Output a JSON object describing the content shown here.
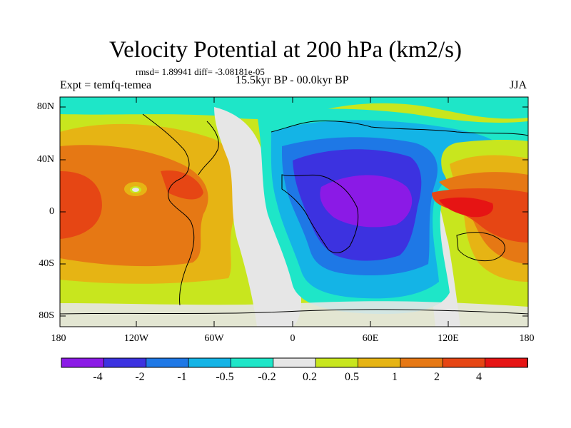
{
  "title": "Velocity Potential at 200 hPa (km2/s)",
  "stats": "rmsd= 1.89941  diff= -3.08181e-05",
  "left_label": "Expt = temfq-temea",
  "center_label": "15.5kyr BP - 00.0kyr BP",
  "right_label": "JJA",
  "lat_ticks": [
    "80N",
    "40N",
    "0",
    "40S",
    "80S"
  ],
  "lon_ticks": [
    "180",
    "120W",
    "60W",
    "0",
    "60E",
    "120E",
    "180"
  ],
  "colorbar": {
    "labels": [
      "-4",
      "-2",
      "-1",
      "-0.5",
      "-0.2",
      "0.2",
      "0.5",
      "1",
      "2",
      "4"
    ],
    "colors": [
      "#8b1ae6",
      "#3c32e0",
      "#1e78e6",
      "#14b4e6",
      "#1ee6c8",
      "#e6e6e6",
      "#c8e61e",
      "#e6b414",
      "#e67814",
      "#e64614",
      "#e61414"
    ]
  }
}
